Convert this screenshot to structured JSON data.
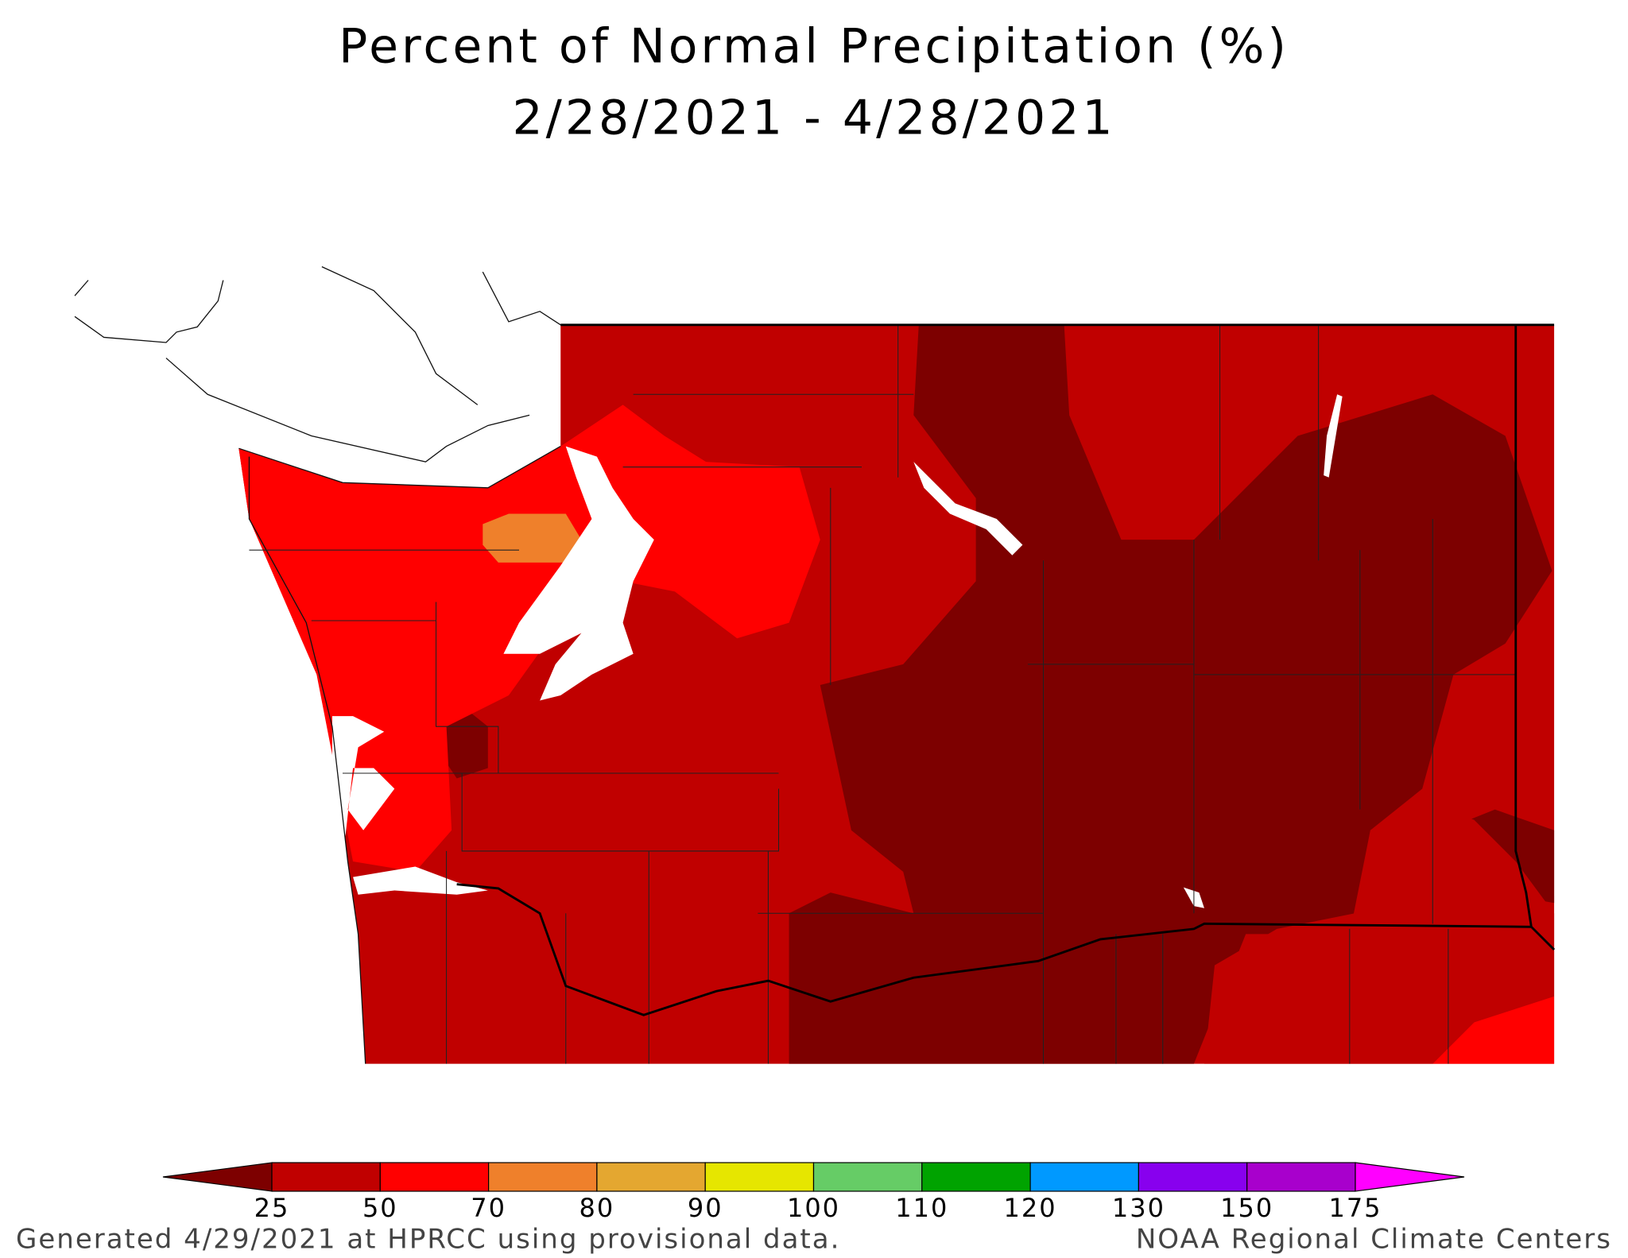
{
  "title": "Percent of Normal Precipitation (%)",
  "subtitle": "2/28/2021 - 4/28/2021",
  "legend": {
    "ticks": [
      25,
      50,
      70,
      80,
      90,
      100,
      110,
      120,
      130,
      150,
      175
    ],
    "colors": [
      "#7d0000",
      "#c00000",
      "#ff0000",
      "#ef802b",
      "#e4a730",
      "#e6e600",
      "#66cc66",
      "#00a300",
      "#0099ff",
      "#8800ee",
      "#a800cc",
      "#ff00ff"
    ]
  },
  "footer": {
    "left": "Generated 4/29/2021 at HPRCC using provisional data.",
    "right": "NOAA Regional Climate Centers"
  }
}
